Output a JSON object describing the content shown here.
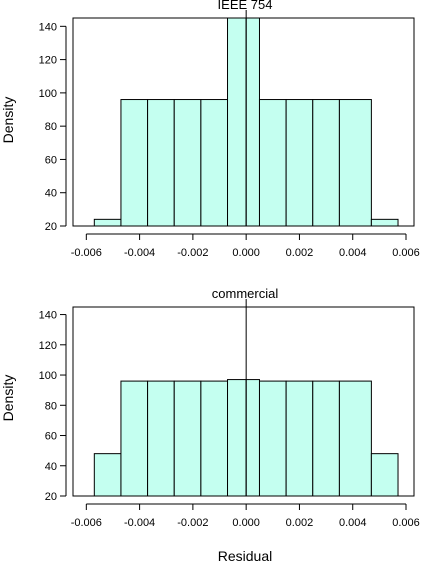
{
  "chart_data": [
    {
      "type": "bar",
      "title": "IEEE 754",
      "xlabel": "",
      "ylabel": "Density",
      "xlim": [
        -0.0065,
        0.0063
      ],
      "ylim": [
        20,
        145
      ],
      "x_ticks": [
        "-0.006",
        "-0.004",
        "-0.002",
        "0.000",
        "0.002",
        "0.004",
        "0.006"
      ],
      "y_ticks": [
        "20",
        "40",
        "60",
        "80",
        "100",
        "120",
        "140"
      ],
      "bin_edges": [
        -0.0057,
        -0.0047,
        -0.0037,
        -0.0027,
        -0.0017,
        -0.0007,
        0.0,
        0.0005,
        0.0015,
        0.0025,
        0.0035,
        0.0047,
        0.0057
      ],
      "values": [
        24,
        96,
        96,
        96,
        96,
        145,
        145,
        96,
        96,
        96,
        96,
        24
      ],
      "vline_x": 0.0,
      "bar_color": "#c4fff0",
      "grid": false,
      "legend": "none"
    },
    {
      "type": "bar",
      "title": "commercial",
      "xlabel": "Residual",
      "ylabel": "Density",
      "xlim": [
        -0.0065,
        0.0063
      ],
      "ylim": [
        20,
        145
      ],
      "x_ticks": [
        "-0.006",
        "-0.004",
        "-0.002",
        "0.000",
        "0.002",
        "0.004",
        "0.006"
      ],
      "y_ticks": [
        "20",
        "40",
        "60",
        "80",
        "100",
        "120",
        "140"
      ],
      "bin_edges": [
        -0.0057,
        -0.0047,
        -0.0037,
        -0.0027,
        -0.0017,
        -0.0007,
        0.0,
        0.0005,
        0.0015,
        0.0025,
        0.0035,
        0.0047,
        0.0057
      ],
      "values": [
        48,
        96,
        96,
        96,
        96,
        97,
        97,
        96,
        96,
        96,
        96,
        48
      ],
      "vline_x": 0.0,
      "bar_color": "#c4fff0",
      "grid": false,
      "legend": "none"
    }
  ]
}
